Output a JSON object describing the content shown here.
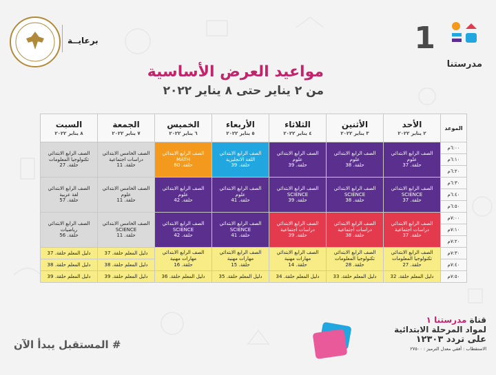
{
  "brand": {
    "name": "مدرستنا",
    "channel_number": "1",
    "sponsor_label": "برعايــة",
    "ministry_seal_text": "MINISTRY OF EDUCATION AND TECHNICAL EDUCATION"
  },
  "header": {
    "title": "مواعيد العرض الأساسية",
    "subtitle": "من ٢ يناير حتى ٨ يناير ٢٠٢٢"
  },
  "table": {
    "time_header": "الموعد",
    "days": [
      {
        "name": "الأحد",
        "date": "٢ يناير ٢٠٢٢"
      },
      {
        "name": "الأثنين",
        "date": "٣ يناير ٢٠٢٢"
      },
      {
        "name": "الثلاثاء",
        "date": "٤ يناير ٢٠٢٢"
      },
      {
        "name": "الأربعاء",
        "date": "٥ يناير ٢٠٢٢"
      },
      {
        "name": "الخميس",
        "date": "٦ يناير ٢٠٢٢"
      },
      {
        "name": "الجمعة",
        "date": "٧ يناير ٢٠٢٢"
      },
      {
        "name": "السبت",
        "date": "٨ يناير ٢٠٢٢"
      }
    ],
    "times": [
      "٦:٠٠م",
      "٦:١٠م",
      "٦:٢٠م",
      "٦:٣٠م",
      "٦:٤٠م",
      "٦:٥٠م",
      "٧:٠٠م",
      "٧:١٠م",
      "٧:٢٠م",
      "٧:٣٠م",
      "٧:٤٠م",
      "٧:٥٠م"
    ],
    "blocks": [
      [
        {
          "line1": "الصف الرابع الابتدائي",
          "line2": "علوم",
          "line3": "حلقة. 37",
          "color": "purple"
        },
        {
          "line1": "الصف الرابع الابتدائي",
          "line2": "علوم",
          "line3": "حلقة. 38",
          "color": "purple"
        },
        {
          "line1": "الصف الرابع الابتدائي",
          "line2": "علوم",
          "line3": "حلقة. 39",
          "color": "purple"
        },
        {
          "line1": "الصف الرابع الابتدائي",
          "line2": "اللغة الانجليزية",
          "line3": "حلقة. 39",
          "color": "blue"
        },
        {
          "line1": "الصف الرابع الابتدائي",
          "line2": "MATH",
          "line3": "حلقة. 60",
          "color": "orange"
        },
        {
          "line1": "الصف الخامس الابتدائي",
          "line2": "دراسات اجتماعية",
          "line3": "حلقة. 11",
          "color": "gray"
        },
        {
          "line1": "الصف الرابع الابتدائي",
          "line2": "تكنولوجيا المعلومات",
          "line3": "حلقة. 27",
          "color": "gray"
        }
      ],
      [
        {
          "line1": "الصف الرابع الابتدائي",
          "line2": "SCIENCE",
          "line3": "حلقة. 37",
          "color": "purple"
        },
        {
          "line1": "الصف الرابع الابتدائي",
          "line2": "SCIENCE",
          "line3": "حلقة. 38",
          "color": "purple"
        },
        {
          "line1": "الصف الرابع الابتدائي",
          "line2": "SCIENCE",
          "line3": "حلقة. 39",
          "color": "purple"
        },
        {
          "line1": "الصف الرابع الابتدائي",
          "line2": "علوم",
          "line3": "حلقة. 41",
          "color": "purple"
        },
        {
          "line1": "الصف الرابع الابتدائي",
          "line2": "علوم",
          "line3": "حلقة. 42",
          "color": "purple"
        },
        {
          "line1": "الصف الخامس الابتدائي",
          "line2": "علوم",
          "line3": "حلقة. 11",
          "color": "gray"
        },
        {
          "line1": "الصف الرابع الابتدائي",
          "line2": "لغة عربية",
          "line3": "حلقة. 57",
          "color": "gray"
        }
      ],
      [
        {
          "line1": "الصف الرابع الابتدائي",
          "line2": "دراسات اجتماعية",
          "line3": "حلقة. 37",
          "color": "red"
        },
        {
          "line1": "الصف الرابع الابتدائي",
          "line2": "دراسات اجتماعية",
          "line3": "حلقة. 38",
          "color": "red"
        },
        {
          "line1": "الصف الرابع الابتدائي",
          "line2": "دراسات اجتماعية",
          "line3": "حلقة. 39",
          "color": "red"
        },
        {
          "line1": "الصف الرابع الابتدائي",
          "line2": "SCIENCE",
          "line3": "حلقة. 41",
          "color": "purple"
        },
        {
          "line1": "الصف الرابع الابتدائي",
          "line2": "SCIENCE",
          "line3": "حلقة. 42",
          "color": "purple"
        },
        {
          "line1": "الصف الخامس الابتدائي",
          "line2": "SCIENCE",
          "line3": "حلقة. 11",
          "color": "gray"
        },
        {
          "line1": "الصف الرابع الابتدائي",
          "line2": "رياضيات",
          "line3": "حلقة. 56",
          "color": "gray"
        }
      ]
    ],
    "last_block": {
      "main": [
        {
          "line1": "الصف الرابع الابتدائي",
          "line2": "تكنولوجيا المعلومات",
          "line3": "حلقة. 27"
        },
        {
          "line1": "الصف الرابع الابتدائي",
          "line2": "تكنولوجيا المعلومات",
          "line3": "حلقة. 28"
        },
        {
          "line1": "الصف الرابع الابتدائي",
          "line2": "مهارات مهنية",
          "line3": "حلقة. 14"
        },
        {
          "line1": "الصف الرابع الابتدائي",
          "line2": "مهارات مهنية",
          "line3": "حلقة. 15"
        },
        {
          "line1": "الصف الرابع الابتدائي",
          "line2": "مهارات مهنية",
          "line3": "حلقة. 16"
        }
      ],
      "guide_row": [
        "دليل المعلم حلقة. 32",
        "دليل المعلم حلقة. 33",
        "دليل المعلم حلقة. 34",
        "دليل المعلم حلقة. 35",
        "دليل المعلم حلقة. 36",
        "دليل المعلم حلقة. 39",
        "دليل المعلم حلقة. 39"
      ],
      "friday_guides": [
        "دليل المعلم حلقة. 37",
        "دليل المعلم حلقة. 38"
      ],
      "saturday_guides": [
        "دليل المعلم حلقة. 37",
        "دليل المعلم حلقة. 38"
      ]
    }
  },
  "footer": {
    "slogan": "# المستقبل يبدأ الآن",
    "channel_line_prefix": "قناة",
    "channel_line_name": "مدرستنا ١",
    "line2": "لمواد المرحلة الابتدائية",
    "line3": "على تردد ١٢٣٠٣",
    "line4": "الاستقطاب : أفقي معدل الترميز : ٢٧٥٠٠"
  },
  "colors": {
    "purple": "#5a2f8e",
    "orange": "#f39a1e",
    "blue": "#22a6df",
    "red": "#e43a4e",
    "gray": "#dadada",
    "yellow": "#f7ec86",
    "title": "#c0246b"
  }
}
